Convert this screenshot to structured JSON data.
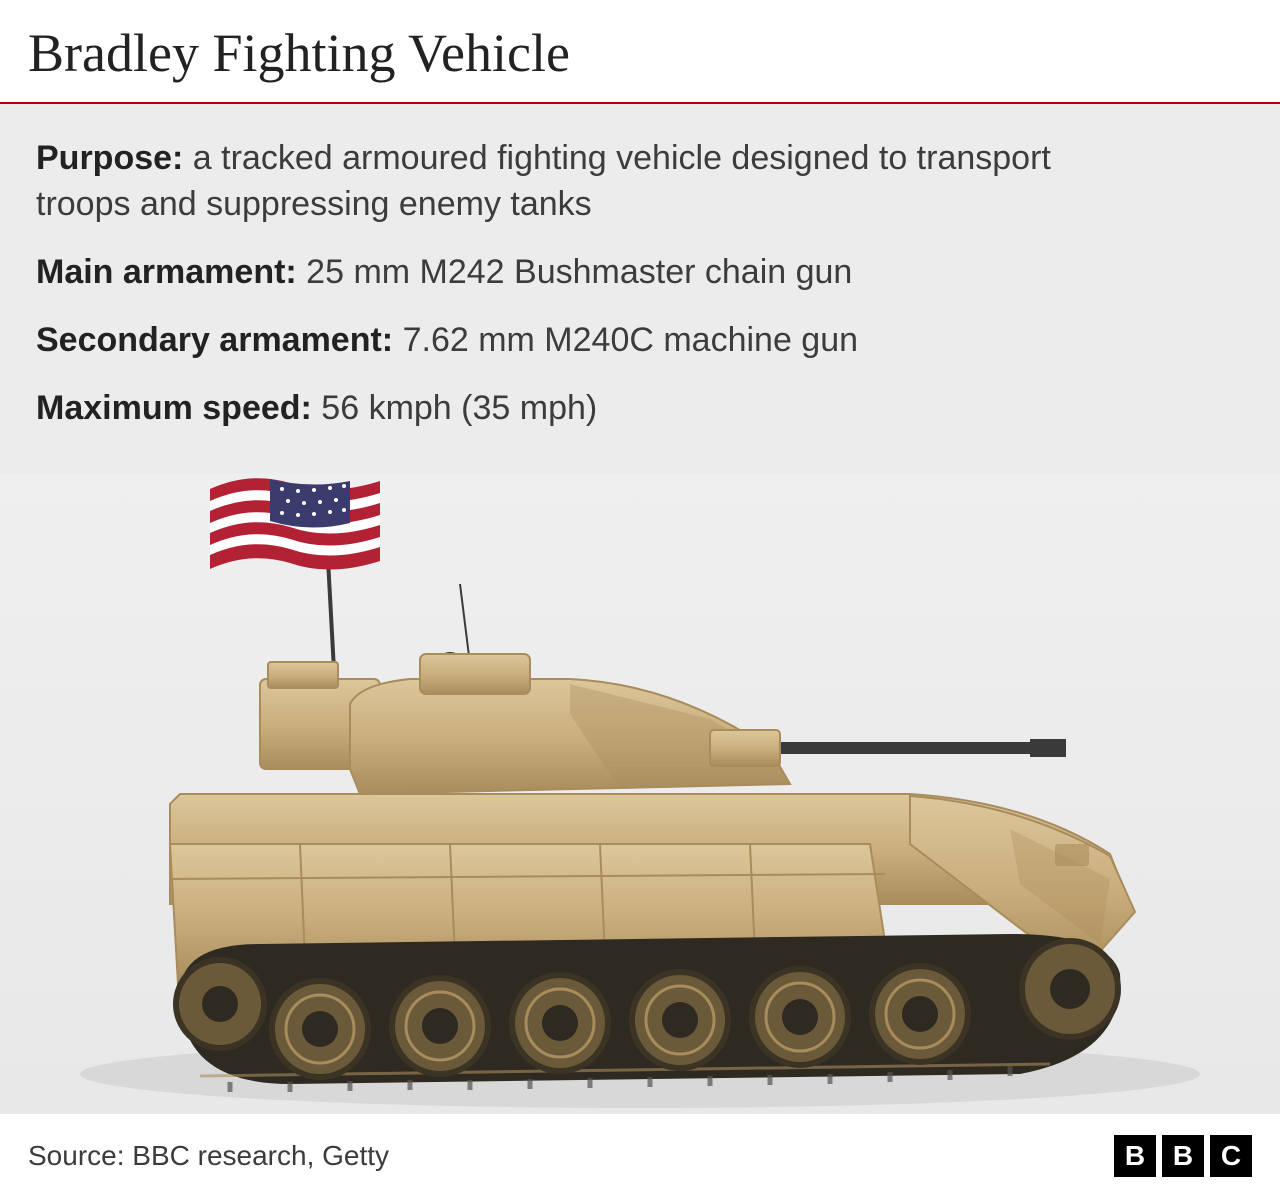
{
  "title": "Bradley Fighting Vehicle",
  "rule_color": "#b80000",
  "body_background": "#ececec",
  "specs": [
    {
      "label": "Purpose:",
      "value": " a tracked armoured fighting vehicle designed to transport troops and suppressing enemy tanks"
    },
    {
      "label": "Main armament:",
      "value": " 25 mm M242 Bushmaster chain gun"
    },
    {
      "label": "Secondary armament:",
      "value": " 7.62 mm M240C machine gun"
    },
    {
      "label": "Maximum speed:",
      "value": " 56 kmph (35 mph)"
    }
  ],
  "vehicle": {
    "hull_color": "#c9ac7b",
    "hull_shadow": "#a88c5b",
    "hull_highlight": "#dcc79b",
    "track_color": "#2e2a22",
    "wheel_color": "#6a5a3a",
    "wheel_rim": "#3b3323",
    "gun_color": "#3a3a3a",
    "ground_gradient_top": "#efefef",
    "ground_gradient_bottom": "#e8e8e8"
  },
  "flag": {
    "red": "#b22234",
    "white": "#ffffff",
    "blue": "#3c3b6e"
  },
  "footer": {
    "source": "Source: BBC research, Getty",
    "logo_letters": [
      "B",
      "B",
      "C"
    ]
  },
  "typography": {
    "title_fontsize": 54,
    "spec_fontsize": 34,
    "source_fontsize": 28
  }
}
